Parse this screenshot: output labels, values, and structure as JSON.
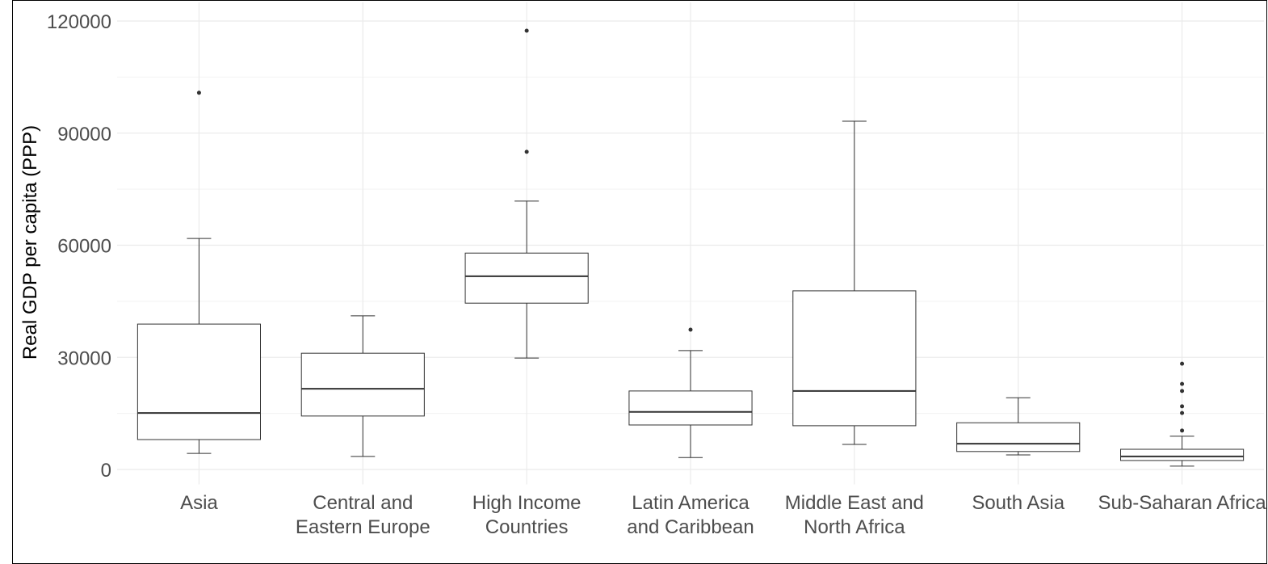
{
  "chart_data": {
    "type": "box",
    "y_label": "Real GDP per capita (PPP)",
    "categories": [
      "Asia",
      "Central and\nEastern Europe",
      "High Income\nCountries",
      "Latin America\nand Caribbean",
      "Middle East and\nNorth Africa",
      "South Asia",
      "Sub-Saharan Africa"
    ],
    "min": [
      4300,
      3500,
      29800,
      3200,
      6700,
      3900,
      900
    ],
    "q1": [
      8000,
      14300,
      44500,
      11900,
      11700,
      4800,
      2400
    ],
    "median": [
      15100,
      21600,
      51700,
      15400,
      21000,
      6900,
      3500
    ],
    "q3": [
      38900,
      31100,
      57900,
      21000,
      47800,
      12500,
      5400
    ],
    "max": [
      61800,
      41100,
      71800,
      31800,
      93200,
      19200,
      8900
    ],
    "outliers": [
      [
        100800
      ],
      [],
      [
        85000,
        117400
      ],
      [
        37400
      ],
      [],
      [],
      [
        10400,
        15100,
        16900,
        21000,
        22900,
        28300
      ]
    ],
    "color": "#333333",
    "ylim": [
      -4000,
      125000
    ],
    "yticks": [
      0,
      30000,
      60000,
      90000,
      120000
    ],
    "minor_yticks": [
      15000,
      45000,
      75000,
      105000
    ],
    "grid": true
  }
}
